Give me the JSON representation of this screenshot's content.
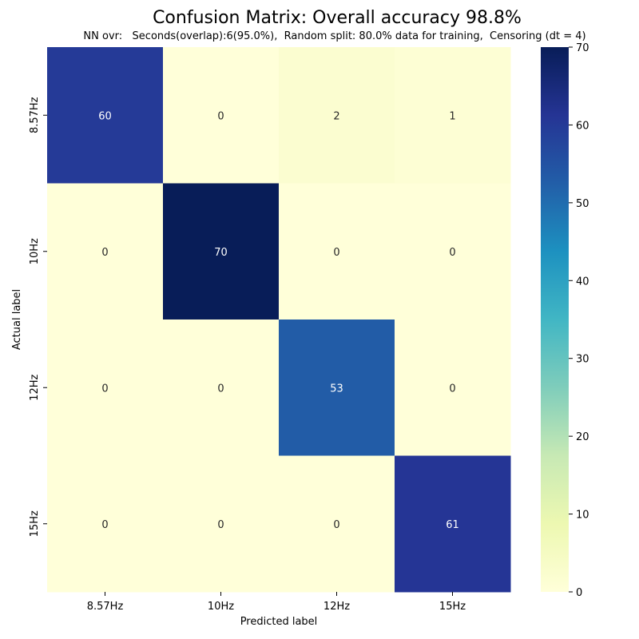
{
  "chart_data": {
    "type": "heatmap",
    "title": "Confusion Matrix: Overall accuracy 98.8%",
    "subtitle": "NN ovr:   Seconds(overlap):6(95.0%),  Random split: 80.0% data for training,  Censoring (dt = 4)",
    "xlabel": "Predicted label",
    "ylabel": "Actual label",
    "x_categories": [
      "8.57Hz",
      "10Hz",
      "12Hz",
      "15Hz"
    ],
    "y_categories": [
      "8.57Hz",
      "10Hz",
      "12Hz",
      "15Hz"
    ],
    "matrix": [
      [
        60,
        0,
        2,
        1
      ],
      [
        0,
        70,
        0,
        0
      ],
      [
        0,
        0,
        53,
        0
      ],
      [
        0,
        0,
        0,
        61
      ]
    ],
    "colorbar": {
      "min": 0,
      "max": 70,
      "ticks": [
        0,
        10,
        20,
        30,
        40,
        50,
        60,
        70
      ],
      "colormap": "YlGnBu"
    }
  }
}
